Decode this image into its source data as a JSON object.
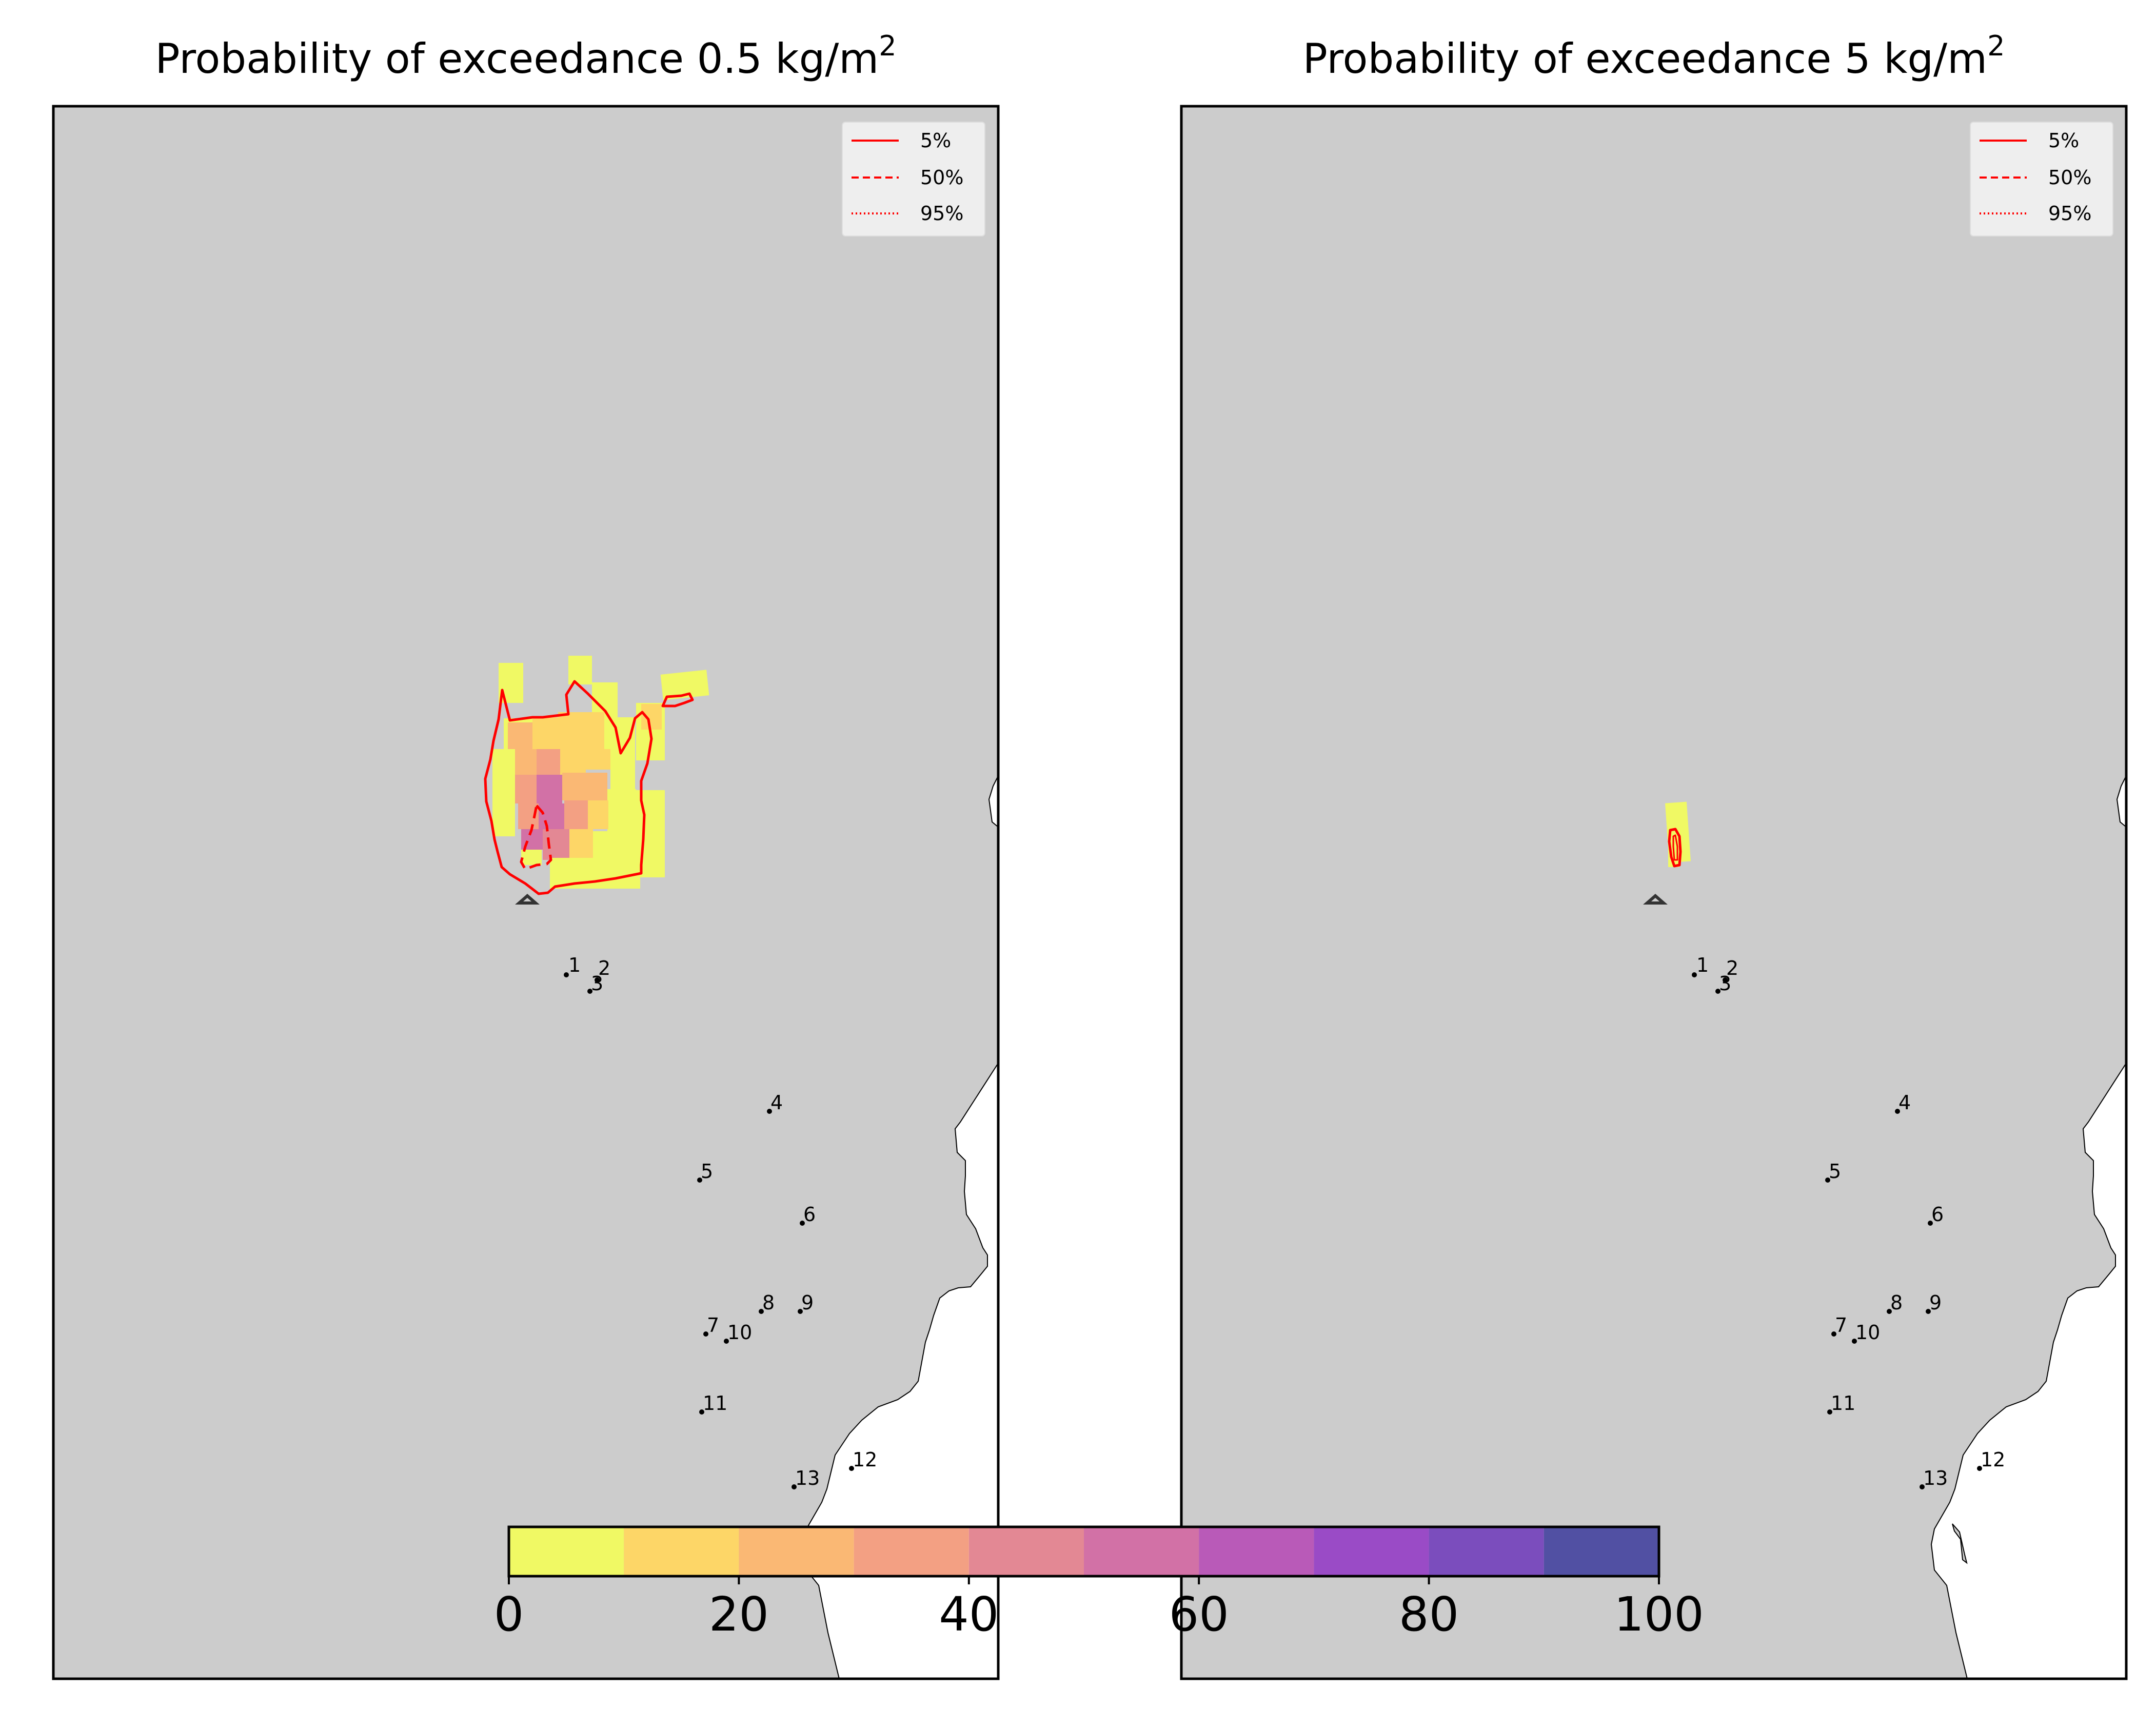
{
  "chart_data": [
    {
      "type": "heatmap",
      "title": "Probability of exceedance 0.5 kg/m",
      "title_superscript": "2",
      "legend": {
        "placement": "top-right",
        "entries": [
          "5%",
          "50%",
          "95%"
        ],
        "styles": [
          "solid",
          "dashed",
          "dotted"
        ],
        "color": "#ff0000"
      },
      "source_marker": "triangle",
      "locations": [
        "1",
        "2",
        "3",
        "4",
        "5",
        "6",
        "7",
        "8",
        "9",
        "10",
        "11",
        "12",
        "13"
      ],
      "probability_field": "0–60% exceedance plume north of source; max ~50–60% near source"
    },
    {
      "type": "heatmap",
      "title": "Probability of exceedance 5 kg/m",
      "title_superscript": "2",
      "legend": {
        "placement": "top-right",
        "entries": [
          "5%",
          "50%",
          "95%"
        ],
        "styles": [
          "solid",
          "dashed",
          "dotted"
        ],
        "color": "#ff0000"
      },
      "source_marker": "triangle",
      "locations": [
        "1",
        "2",
        "3",
        "4",
        "5",
        "6",
        "7",
        "8",
        "9",
        "10",
        "11",
        "12",
        "13"
      ],
      "probability_field": "0–10% exceedance in small strip north of source"
    }
  ],
  "colorbar": {
    "ticks": [
      "0",
      "20",
      "40",
      "60",
      "80",
      "100"
    ],
    "boundaries": [
      0,
      10,
      20,
      30,
      40,
      50,
      60,
      70,
      80,
      90,
      100
    ],
    "colors": [
      "#f0f964",
      "#fdd667",
      "#fab874",
      "#f3a083",
      "#e38894",
      "#d271a6",
      "#b95ab8",
      "#9a4bc6",
      "#7b4dbd",
      "#5150a3"
    ]
  },
  "colors": {
    "land": "#cccccc",
    "sea": "#ffffff",
    "contour": "#ff0000",
    "frame": "#000000"
  }
}
